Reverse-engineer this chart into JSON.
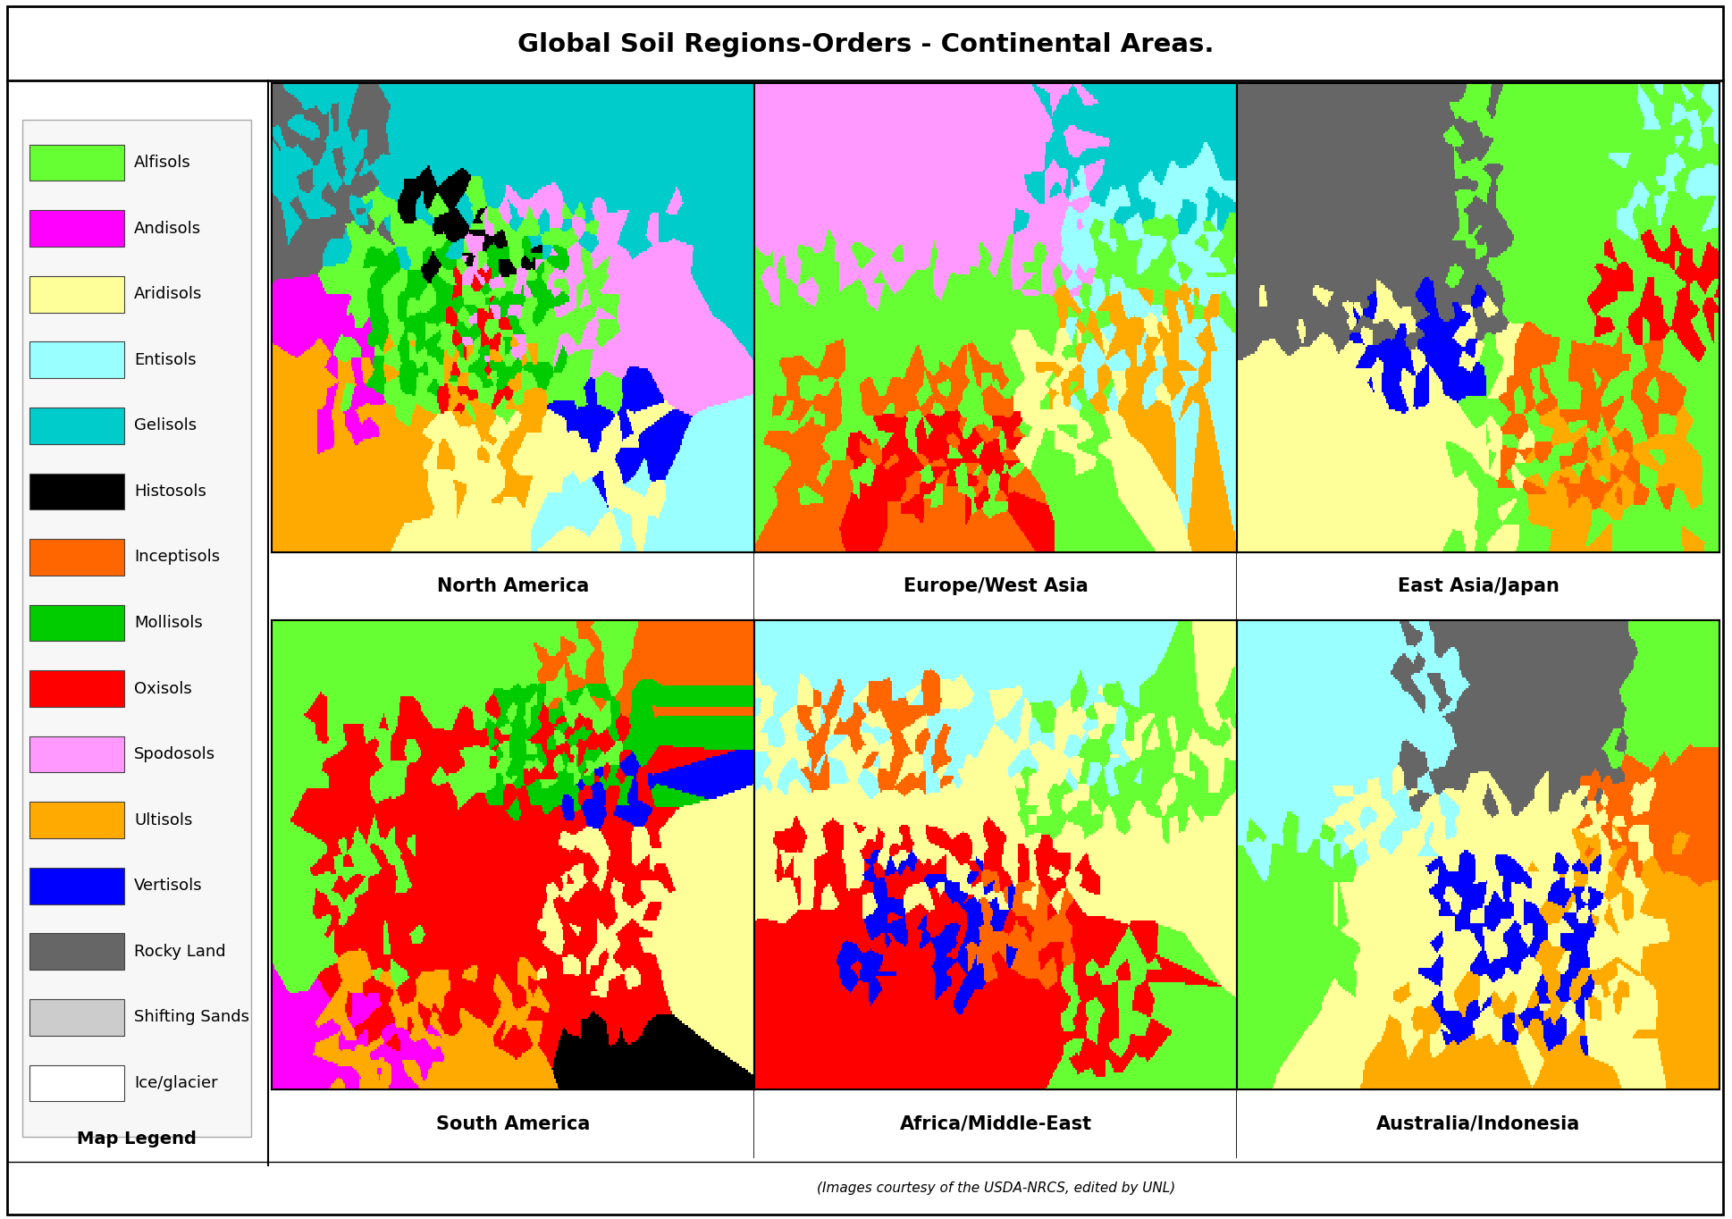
{
  "title": "Global Soil Regions-Orders - Continental Areas.",
  "title_fontsize": 21,
  "title_fontweight": "bold",
  "footer_text": "(Images courtesy of the USDA-NRCS, edited by UNL)",
  "map_labels": [
    "North America",
    "Europe/West Asia",
    "East Asia/Japan",
    "South America",
    "Africa/Middle-East",
    "Australia/Indonesia"
  ],
  "legend_items": [
    {
      "label": "Alfisols",
      "color": "#66FF33"
    },
    {
      "label": "Andisols",
      "color": "#FF00FF"
    },
    {
      "label": "Aridisols",
      "color": "#FFFF99"
    },
    {
      "label": "Entisols",
      "color": "#99FFFF"
    },
    {
      "label": "Gelisols",
      "color": "#00CCCC"
    },
    {
      "label": "Histosols",
      "color": "#000000"
    },
    {
      "label": "Inceptisols",
      "color": "#FF6600"
    },
    {
      "label": "Mollisols",
      "color": "#00CC00"
    },
    {
      "label": "Oxisols",
      "color": "#FF0000"
    },
    {
      "label": "Spodosols",
      "color": "#FF99FF"
    },
    {
      "label": "Ultisols",
      "color": "#FFAA00"
    },
    {
      "label": "Vertisols",
      "color": "#0000FF"
    },
    {
      "label": "Rocky Land",
      "color": "#666666"
    },
    {
      "label": "Shifting Sands",
      "color": "#CCCCCC"
    },
    {
      "label": "Ice/glacier",
      "color": "#FFFFFF"
    }
  ],
  "bg": "#FFFFFF",
  "outer_border_lw": 2,
  "title_sep_lw": 2,
  "vert_sep_lw": 1.5,
  "footer_sep_lw": 1,
  "map_label_fontsize": 15,
  "map_label_fontweight": "bold",
  "legend_fontsize": 13,
  "legend_title": "Map Legend",
  "legend_title_fontsize": 14,
  "legend_title_fontweight": "bold",
  "footer_fontsize": 11,
  "north_america_regions": [
    {
      "color": "#00CCCC",
      "weight": 0.22,
      "ymin": 0.62,
      "ymax": 1.0,
      "xmin": 0.0,
      "xmax": 1.0
    },
    {
      "color": "#66FF33",
      "weight": 0.2,
      "ymin": 0.3,
      "ymax": 0.75,
      "xmin": 0.15,
      "xmax": 0.7
    },
    {
      "color": "#00CC00",
      "weight": 0.12,
      "ymin": 0.35,
      "ymax": 0.65,
      "xmin": 0.2,
      "xmax": 0.6
    },
    {
      "color": "#FF99FF",
      "weight": 0.1,
      "ymin": 0.4,
      "ymax": 0.75,
      "xmin": 0.4,
      "xmax": 0.85
    },
    {
      "color": "#FFAA00",
      "weight": 0.1,
      "ymin": 0.1,
      "ymax": 0.45,
      "xmin": 0.05,
      "xmax": 0.55
    },
    {
      "color": "#FFFF99",
      "weight": 0.08,
      "ymin": 0.0,
      "ymax": 0.3,
      "xmin": 0.3,
      "xmax": 0.8
    },
    {
      "color": "#666666",
      "weight": 0.05,
      "ymin": 0.65,
      "ymax": 0.95,
      "xmin": 0.0,
      "xmax": 0.25
    },
    {
      "color": "#000000",
      "weight": 0.03,
      "ymin": 0.6,
      "ymax": 0.8,
      "xmin": 0.2,
      "xmax": 0.55
    },
    {
      "color": "#FF00FF",
      "weight": 0.03,
      "ymin": 0.25,
      "ymax": 0.55,
      "xmin": 0.08,
      "xmax": 0.22
    },
    {
      "color": "#FF0000",
      "weight": 0.03,
      "ymin": 0.3,
      "ymax": 0.6,
      "xmin": 0.35,
      "xmax": 0.5
    },
    {
      "color": "#0000FF",
      "weight": 0.02,
      "ymin": 0.15,
      "ymax": 0.35,
      "xmin": 0.6,
      "xmax": 0.8
    },
    {
      "color": "#99FFFF",
      "weight": 0.02,
      "ymin": 0.0,
      "ymax": 0.2,
      "xmin": 0.55,
      "xmax": 0.9
    }
  ],
  "europe_regions": [
    {
      "color": "#FF99FF",
      "weight": 0.25,
      "ymin": 0.55,
      "ymax": 1.0,
      "xmin": 0.0,
      "xmax": 0.7
    },
    {
      "color": "#66FF33",
      "weight": 0.22,
      "ymin": 0.1,
      "ymax": 0.65,
      "xmin": 0.0,
      "xmax": 0.75
    },
    {
      "color": "#99FFFF",
      "weight": 0.12,
      "ymin": 0.3,
      "ymax": 0.8,
      "xmin": 0.65,
      "xmax": 1.0
    },
    {
      "color": "#FF6600",
      "weight": 0.12,
      "ymin": 0.05,
      "ymax": 0.4,
      "xmin": 0.05,
      "xmax": 0.55
    },
    {
      "color": "#FF0000",
      "weight": 0.08,
      "ymin": 0.1,
      "ymax": 0.3,
      "xmin": 0.2,
      "xmax": 0.55
    },
    {
      "color": "#FFAA00",
      "weight": 0.07,
      "ymin": 0.3,
      "ymax": 0.55,
      "xmin": 0.6,
      "xmax": 0.95
    },
    {
      "color": "#FFFF99",
      "weight": 0.05,
      "ymin": 0.2,
      "ymax": 0.5,
      "xmin": 0.55,
      "xmax": 0.85
    },
    {
      "color": "#00CCCC",
      "weight": 0.05,
      "ymin": 0.7,
      "ymax": 1.0,
      "xmin": 0.55,
      "xmax": 1.0
    },
    {
      "color": "#66FF33",
      "weight": 0.04,
      "ymin": 0.5,
      "ymax": 0.7,
      "xmin": 0.7,
      "xmax": 1.0
    }
  ],
  "eastasia_regions": [
    {
      "color": "#666666",
      "weight": 0.25,
      "ymin": 0.45,
      "ymax": 1.0,
      "xmin": 0.0,
      "xmax": 0.55
    },
    {
      "color": "#66FF33",
      "weight": 0.18,
      "ymin": 0.55,
      "ymax": 1.0,
      "xmin": 0.45,
      "xmax": 1.0
    },
    {
      "color": "#FFFF99",
      "weight": 0.15,
      "ymin": 0.0,
      "ymax": 0.55,
      "xmin": 0.0,
      "xmax": 0.6
    },
    {
      "color": "#66FF33",
      "weight": 0.12,
      "ymin": 0.0,
      "ymax": 0.55,
      "xmin": 0.45,
      "xmax": 1.0
    },
    {
      "color": "#FF6600",
      "weight": 0.08,
      "ymin": 0.1,
      "ymax": 0.45,
      "xmin": 0.55,
      "xmax": 0.9
    },
    {
      "color": "#0000FF",
      "weight": 0.05,
      "ymin": 0.35,
      "ymax": 0.55,
      "xmin": 0.25,
      "xmax": 0.5
    },
    {
      "color": "#FF0000",
      "weight": 0.04,
      "ymin": 0.45,
      "ymax": 0.65,
      "xmin": 0.75,
      "xmax": 1.0
    },
    {
      "color": "#FFAA00",
      "weight": 0.05,
      "ymin": 0.0,
      "ymax": 0.3,
      "xmin": 0.6,
      "xmax": 0.95
    },
    {
      "color": "#99FFFF",
      "weight": 0.04,
      "ymin": 0.7,
      "ymax": 1.0,
      "xmin": 0.8,
      "xmax": 1.0
    },
    {
      "color": "#666666",
      "weight": 0.04,
      "ymin": 0.6,
      "ymax": 0.85,
      "xmin": 0.15,
      "xmax": 0.4
    }
  ],
  "southamerica_regions": [
    {
      "color": "#FF0000",
      "weight": 0.4,
      "ymin": 0.1,
      "ymax": 0.8,
      "xmin": 0.1,
      "xmax": 0.8
    },
    {
      "color": "#66FF33",
      "weight": 0.18,
      "ymin": 0.65,
      "ymax": 1.0,
      "xmin": 0.05,
      "xmax": 0.75
    },
    {
      "color": "#00CC00",
      "weight": 0.1,
      "ymin": 0.6,
      "ymax": 0.85,
      "xmin": 0.45,
      "xmax": 0.8
    },
    {
      "color": "#FFAA00",
      "weight": 0.08,
      "ymin": 0.0,
      "ymax": 0.25,
      "xmin": 0.1,
      "xmax": 0.55
    },
    {
      "color": "#FFFF99",
      "weight": 0.07,
      "ymin": 0.2,
      "ymax": 0.55,
      "xmin": 0.55,
      "xmax": 0.85
    },
    {
      "color": "#FF00FF",
      "weight": 0.05,
      "ymin": 0.0,
      "ymax": 0.2,
      "xmin": 0.0,
      "xmax": 0.35
    },
    {
      "color": "#66FF33",
      "weight": 0.05,
      "ymin": 0.25,
      "ymax": 0.55,
      "xmin": 0.05,
      "xmax": 0.3
    },
    {
      "color": "#000000",
      "weight": 0.02,
      "ymin": 0.05,
      "ymax": 0.15,
      "xmin": 0.6,
      "xmax": 0.8
    },
    {
      "color": "#0000FF",
      "weight": 0.02,
      "ymin": 0.55,
      "ymax": 0.7,
      "xmin": 0.6,
      "xmax": 0.8
    },
    {
      "color": "#FF6600",
      "weight": 0.03,
      "ymin": 0.8,
      "ymax": 1.0,
      "xmin": 0.5,
      "xmax": 0.8
    }
  ],
  "africa_regions": [
    {
      "color": "#FFFF99",
      "weight": 0.3,
      "ymin": 0.4,
      "ymax": 0.85,
      "xmin": 0.0,
      "xmax": 1.0
    },
    {
      "color": "#FF0000",
      "weight": 0.2,
      "ymin": 0.05,
      "ymax": 0.55,
      "xmin": 0.05,
      "xmax": 0.7
    },
    {
      "color": "#99FFFF",
      "weight": 0.15,
      "ymin": 0.65,
      "ymax": 1.0,
      "xmin": 0.0,
      "xmax": 0.8
    },
    {
      "color": "#66FF33",
      "weight": 0.1,
      "ymin": 0.55,
      "ymax": 0.85,
      "xmin": 0.55,
      "xmax": 1.0
    },
    {
      "color": "#0000FF",
      "weight": 0.07,
      "ymin": 0.2,
      "ymax": 0.5,
      "xmin": 0.2,
      "xmax": 0.55
    },
    {
      "color": "#FF6600",
      "weight": 0.05,
      "ymin": 0.65,
      "ymax": 0.85,
      "xmin": 0.1,
      "xmax": 0.4
    },
    {
      "color": "#FF6600",
      "weight": 0.05,
      "ymin": 0.25,
      "ymax": 0.45,
      "xmin": 0.45,
      "xmax": 0.65
    },
    {
      "color": "#66FF33",
      "weight": 0.04,
      "ymin": 0.0,
      "ymax": 0.3,
      "xmin": 0.65,
      "xmax": 0.85
    },
    {
      "color": "#FF0000",
      "weight": 0.04,
      "ymin": 0.05,
      "ymax": 0.3,
      "xmin": 0.6,
      "xmax": 0.85
    }
  ],
  "australia_regions": [
    {
      "color": "#FFFF99",
      "weight": 0.3,
      "ymin": 0.1,
      "ymax": 0.65,
      "xmin": 0.2,
      "xmax": 0.85
    },
    {
      "color": "#99FFFF",
      "weight": 0.18,
      "ymin": 0.5,
      "ymax": 1.0,
      "xmin": 0.0,
      "xmax": 0.45
    },
    {
      "color": "#666666",
      "weight": 0.12,
      "ymin": 0.6,
      "ymax": 1.0,
      "xmin": 0.35,
      "xmax": 0.8
    },
    {
      "color": "#0000FF",
      "weight": 0.1,
      "ymin": 0.1,
      "ymax": 0.5,
      "xmin": 0.4,
      "xmax": 0.75
    },
    {
      "color": "#FFAA00",
      "weight": 0.08,
      "ymin": 0.1,
      "ymax": 0.55,
      "xmin": 0.6,
      "xmax": 1.0
    },
    {
      "color": "#FF6600",
      "weight": 0.07,
      "ymin": 0.45,
      "ymax": 0.7,
      "xmin": 0.72,
      "xmax": 1.0
    },
    {
      "color": "#66FF33",
      "weight": 0.05,
      "ymin": 0.2,
      "ymax": 0.55,
      "xmin": 0.0,
      "xmax": 0.25
    },
    {
      "color": "#66FF33",
      "weight": 0.05,
      "ymin": 0.7,
      "ymax": 1.0,
      "xmin": 0.78,
      "xmax": 1.0
    },
    {
      "color": "#FFAA00",
      "weight": 0.05,
      "ymin": 0.0,
      "ymax": 0.2,
      "xmin": 0.3,
      "xmax": 0.75
    }
  ]
}
